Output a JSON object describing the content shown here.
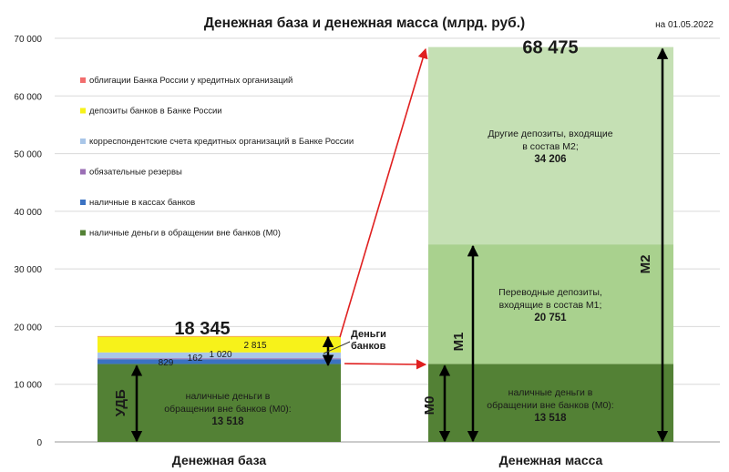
{
  "chart_data": {
    "type": "bar",
    "title": "Денежная база и денежная масса (млрд. руб.)",
    "date_note": "на 01.05.2022",
    "ylim": [
      0,
      70000
    ],
    "yticks": [
      "0",
      "10 000",
      "20 000",
      "30 000",
      "40 000",
      "50 000",
      "60 000",
      "70 000"
    ],
    "categories": [
      "Денежная база",
      "Денежная масса"
    ],
    "legend": [
      {
        "label": "облигации Банка России у кредитных организаций",
        "color": "#f26d6d"
      },
      {
        "label": "депозиты банков в Банке России",
        "color": "#f7f21a"
      },
      {
        "label": "корреспондентские счета кредитных организаций в Банке России",
        "color": "#a9c6e8"
      },
      {
        "label": "обязательные резервы",
        "color": "#9b6fb5"
      },
      {
        "label": "наличные в кассах банков",
        "color": "#3b72c2"
      },
      {
        "label": "наличные деньги в обращении вне банков (М0)",
        "color": "#538135"
      }
    ],
    "base_segments": [
      {
        "value": 13518,
        "color": "#538135",
        "label": [
          "наличные деньги в",
          "обращении вне банков (М0):",
          "13 518"
        ]
      },
      {
        "value": 829,
        "color": "#3b72c2",
        "label": [
          "829"
        ]
      },
      {
        "value": 162,
        "color": "#9b6fb5",
        "label": [
          "162"
        ]
      },
      {
        "value": 1020,
        "color": "#a9c6e8",
        "label": [
          "1 020"
        ]
      },
      {
        "value": 2815,
        "color": "#f7f21a",
        "label": [
          "2 815"
        ]
      },
      {
        "value": 1,
        "color": "#f26d6d",
        "label": []
      }
    ],
    "base_total": "18 345",
    "mass_segments": [
      {
        "value": 13518,
        "color": "#538135",
        "label": [
          "наличные деньги в",
          "обращении вне банков (М0):",
          "13 518"
        ]
      },
      {
        "value": 20751,
        "color": "#a9d18e",
        "label": [
          "Переводные депозиты,",
          "входящие в состав М1;",
          "20 751"
        ]
      },
      {
        "value": 34206,
        "color": "#c5e0b4",
        "label": [
          "Другие депозиты, входящие",
          "в состав М2;",
          "34 206"
        ]
      }
    ],
    "mass_total": "68 475",
    "brackets": {
      "udb": "УДБ",
      "banks_money": [
        "Деньги",
        "банков"
      ],
      "m0": "М0",
      "m1": "М1",
      "m2": "М2"
    }
  }
}
